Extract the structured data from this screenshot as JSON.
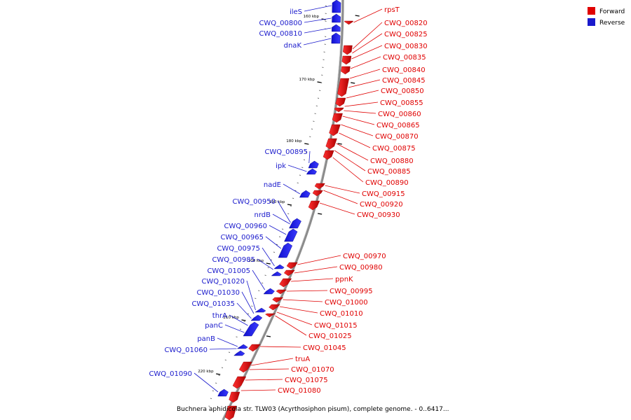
{
  "colors": {
    "forward": "#e00000",
    "reverse": "#1a1acc",
    "backbone": "#999999"
  },
  "legend": [
    {
      "label": "Forward",
      "color": "#e00000"
    },
    {
      "label": "Reverse",
      "color": "#1a1acc"
    }
  ],
  "caption": "Buchnera aphidicola str. TLW03 (Acyrthosiphon pisum), complete genome. - 0..6417...",
  "ticks": [
    "160 kbp",
    "170 kbp",
    "180 kbp",
    "190 kbp",
    "200 kbp",
    "210 kbp",
    "220 kbp"
  ],
  "forward_genes": [
    "rpsT",
    "CWQ_00820",
    "CWQ_00825",
    "CWQ_00830",
    "CWQ_00835",
    "CWQ_00840",
    "CWQ_00845",
    "CWQ_00850",
    "CWQ_00855",
    "CWQ_00860",
    "CWQ_00865",
    "CWQ_00870",
    "CWQ_00875",
    "CWQ_00880",
    "CWQ_00885",
    "CWQ_00890",
    "CWQ_00915",
    "CWQ_00920",
    "CWQ_00930",
    "CWQ_00970",
    "CWQ_00980",
    "ppnK",
    "CWQ_00995",
    "CWQ_01000",
    "CWQ_01010",
    "CWQ_01015",
    "CWQ_01025",
    "CWQ_01045",
    "truA",
    "CWQ_01070",
    "CWQ_01075",
    "CWQ_01080"
  ],
  "reverse_genes": [
    "ileS",
    "CWQ_00800",
    "CWQ_00810",
    "dnaK",
    "CWQ_00895",
    "ipk",
    "nadE",
    "CWQ_00950",
    "nrdB",
    "CWQ_00960",
    "CWQ_00965",
    "CWQ_00975",
    "CWQ_00985",
    "CWQ_01005",
    "CWQ_01020",
    "CWQ_01030",
    "CWQ_01035",
    "thrA",
    "panC",
    "panB",
    "CWQ_01060",
    "CWQ_01090"
  ]
}
